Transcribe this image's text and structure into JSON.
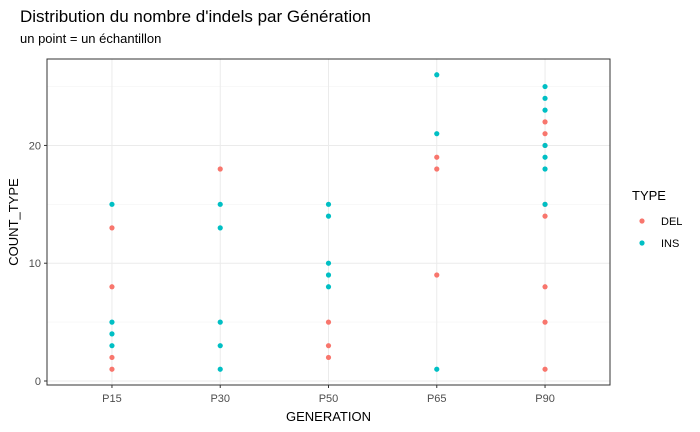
{
  "colors": {
    "DEL": "#F8766D",
    "INS": "#00BFC4"
  },
  "chart_data": {
    "type": "scatter",
    "title": "Distribution du nombre d'indels par Génération",
    "subtitle": "un point = un échantillon",
    "xlabel": "GENERATION",
    "ylabel": "COUNT_TYPE",
    "categories": [
      "P15",
      "P30",
      "P50",
      "P65",
      "P90"
    ],
    "ylim": [
      0,
      27
    ],
    "yticks": [
      0,
      10,
      20
    ],
    "grid": true,
    "legend": {
      "title": "TYPE",
      "position": "right",
      "entries": [
        "DEL",
        "INS"
      ]
    },
    "series": [
      {
        "name": "DEL",
        "points": [
          {
            "x": "P15",
            "y": 1
          },
          {
            "x": "P15",
            "y": 2
          },
          {
            "x": "P15",
            "y": 8
          },
          {
            "x": "P15",
            "y": 13
          },
          {
            "x": "P30",
            "y": 18
          },
          {
            "x": "P50",
            "y": 2
          },
          {
            "x": "P50",
            "y": 3
          },
          {
            "x": "P50",
            "y": 5
          },
          {
            "x": "P65",
            "y": 9
          },
          {
            "x": "P65",
            "y": 18
          },
          {
            "x": "P65",
            "y": 19
          },
          {
            "x": "P90",
            "y": 1
          },
          {
            "x": "P90",
            "y": 5
          },
          {
            "x": "P90",
            "y": 8
          },
          {
            "x": "P90",
            "y": 14
          },
          {
            "x": "P90",
            "y": 15
          },
          {
            "x": "P90",
            "y": 20
          },
          {
            "x": "P90",
            "y": 21
          },
          {
            "x": "P90",
            "y": 22
          }
        ]
      },
      {
        "name": "INS",
        "points": [
          {
            "x": "P15",
            "y": 3
          },
          {
            "x": "P15",
            "y": 4
          },
          {
            "x": "P15",
            "y": 5
          },
          {
            "x": "P15",
            "y": 15
          },
          {
            "x": "P30",
            "y": 1
          },
          {
            "x": "P30",
            "y": 3
          },
          {
            "x": "P30",
            "y": 5
          },
          {
            "x": "P30",
            "y": 13
          },
          {
            "x": "P30",
            "y": 15
          },
          {
            "x": "P50",
            "y": 8
          },
          {
            "x": "P50",
            "y": 9
          },
          {
            "x": "P50",
            "y": 10
          },
          {
            "x": "P50",
            "y": 14
          },
          {
            "x": "P50",
            "y": 15
          },
          {
            "x": "P65",
            "y": 1
          },
          {
            "x": "P65",
            "y": 21
          },
          {
            "x": "P65",
            "y": 26
          },
          {
            "x": "P90",
            "y": 15
          },
          {
            "x": "P90",
            "y": 18
          },
          {
            "x": "P90",
            "y": 19
          },
          {
            "x": "P90",
            "y": 20
          },
          {
            "x": "P90",
            "y": 23
          },
          {
            "x": "P90",
            "y": 24
          },
          {
            "x": "P90",
            "y": 25
          }
        ]
      }
    ]
  }
}
